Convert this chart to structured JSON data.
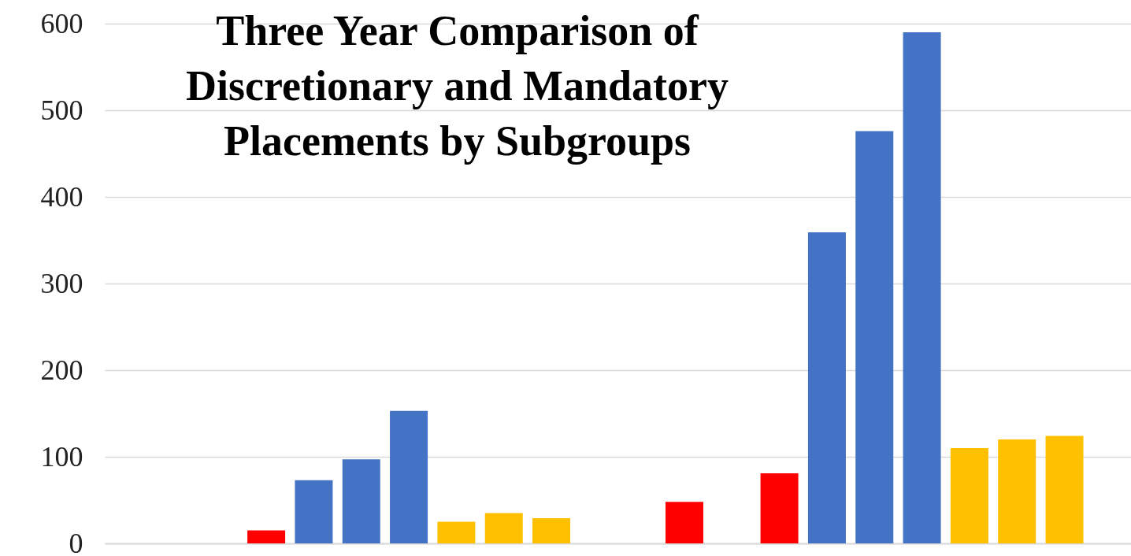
{
  "chart_data": {
    "type": "bar",
    "title": "Three Year Comparison of\nDiscretionary and Mandatory\nPlacements by Subgroups",
    "categories": [
      null,
      null
    ],
    "series": [
      {
        "color": "#ff0000",
        "values": [
          null,
          48
        ]
      },
      {
        "color": "#ff0000",
        "values": [
          null,
          null
        ]
      },
      {
        "color": "#ff0000",
        "values": [
          15,
          81
        ]
      },
      {
        "color": "#4472c4",
        "values": [
          73,
          359
        ]
      },
      {
        "color": "#4472c4",
        "values": [
          97,
          476
        ]
      },
      {
        "color": "#4472c4",
        "values": [
          153,
          590
        ]
      },
      {
        "color": "#ffc000",
        "values": [
          25,
          110
        ]
      },
      {
        "color": "#ffc000",
        "values": [
          35,
          120
        ]
      },
      {
        "color": "#ffc000",
        "values": [
          29,
          124
        ]
      }
    ],
    "ylim": [
      0,
      600
    ],
    "yticks": [
      0,
      100,
      200,
      300,
      400,
      500,
      600
    ],
    "grid": "y",
    "legend": false
  }
}
